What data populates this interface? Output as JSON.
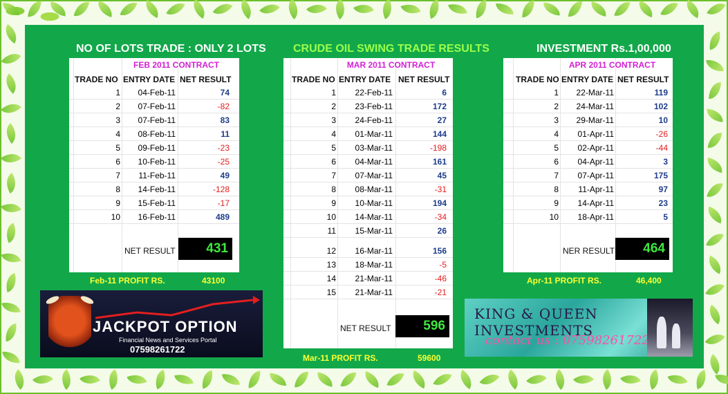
{
  "header": {
    "left": "NO OF LOTS TRADE : ONLY 2 LOTS",
    "center": "CRUDE OIL SWING TRADE RESULTS",
    "right": "INVESTMENT  Rs.1,00,000"
  },
  "columns": {
    "trade_no": "TRADE NO",
    "entry_date": "ENTRY DATE",
    "net_result": "NET RESULT"
  },
  "feb": {
    "contract": "FEB 2011 CONTRACT",
    "rows": [
      {
        "no": "1",
        "date": "04-Feb-11",
        "result": "74"
      },
      {
        "no": "2",
        "date": "07-Feb-11",
        "result": "-82"
      },
      {
        "no": "3",
        "date": "07-Feb-11",
        "result": "83"
      },
      {
        "no": "4",
        "date": "08-Feb-11",
        "result": "11"
      },
      {
        "no": "5",
        "date": "09-Feb-11",
        "result": "-23"
      },
      {
        "no": "6",
        "date": "10-Feb-11",
        "result": "-25"
      },
      {
        "no": "7",
        "date": "11-Feb-11",
        "result": "49"
      },
      {
        "no": "8",
        "date": "14-Feb-11",
        "result": "-128"
      },
      {
        "no": "9",
        "date": "15-Feb-11",
        "result": "-17"
      },
      {
        "no": "10",
        "date": "16-Feb-11",
        "result": "489"
      }
    ],
    "net_label": "NET RESULT",
    "net_value": "431",
    "profit_label": "Feb-11 PROFIT RS.",
    "profit_value": "43100"
  },
  "mar": {
    "contract": "MAR 2011 CONTRACT",
    "rows": [
      {
        "no": "1",
        "date": "22-Feb-11",
        "result": "6"
      },
      {
        "no": "2",
        "date": "23-Feb-11",
        "result": "172"
      },
      {
        "no": "3",
        "date": "24-Feb-11",
        "result": "27"
      },
      {
        "no": "4",
        "date": "01-Mar-11",
        "result": "144"
      },
      {
        "no": "5",
        "date": "03-Mar-11",
        "result": "-198"
      },
      {
        "no": "6",
        "date": "04-Mar-11",
        "result": "161"
      },
      {
        "no": "7",
        "date": "07-Mar-11",
        "result": "45"
      },
      {
        "no": "8",
        "date": "08-Mar-11",
        "result": "-31"
      },
      {
        "no": "9",
        "date": "10-Mar-11",
        "result": "194"
      },
      {
        "no": "10",
        "date": "14-Mar-11",
        "result": "-34"
      },
      {
        "no": "11",
        "date": "15-Mar-11",
        "result": "26"
      },
      {
        "no": "12",
        "date": "16-Mar-11",
        "result": "156"
      },
      {
        "no": "13",
        "date": "18-Mar-11",
        "result": "-5"
      },
      {
        "no": "14",
        "date": "21-Mar-11",
        "result": "-46"
      },
      {
        "no": "15",
        "date": "21-Mar-11",
        "result": "-21"
      }
    ],
    "net_label": "NET RESULT",
    "net_value": "596",
    "profit_label": "Mar-11 PROFIT RS.",
    "profit_value": "59600"
  },
  "apr": {
    "contract": "APR 2011 CONTRACT",
    "rows": [
      {
        "no": "1",
        "date": "22-Mar-11",
        "result": "119"
      },
      {
        "no": "2",
        "date": "24-Mar-11",
        "result": "102"
      },
      {
        "no": "3",
        "date": "29-Mar-11",
        "result": "10"
      },
      {
        "no": "4",
        "date": "01-Apr-11",
        "result": "-26"
      },
      {
        "no": "5",
        "date": "02-Apr-11",
        "result": "-44"
      },
      {
        "no": "6",
        "date": "04-Apr-11",
        "result": "3"
      },
      {
        "no": "7",
        "date": "07-Apr-11",
        "result": "175"
      },
      {
        "no": "8",
        "date": "11-Apr-11",
        "result": "97"
      },
      {
        "no": "9",
        "date": "14-Apr-11",
        "result": "23"
      },
      {
        "no": "10",
        "date": "18-Apr-11",
        "result": "5"
      }
    ],
    "net_label": "NER RESULT",
    "net_value": "464",
    "profit_label": "Apr-11 PROFIT RS.",
    "profit_value": "46,400"
  },
  "ad_jackpot": {
    "title": "JACKPOT OPTION",
    "subtitle": "Financial News and Services Portal",
    "phone": "07598261722"
  },
  "ad_kq": {
    "title": "KING & QUEEN INVESTMENTS",
    "contact": "contact us : 07598261722"
  },
  "colors": {
    "positive": "#1c3c8a",
    "negative": "#e21b1b",
    "net_value": "#3ee93e",
    "profit": "#ffff33"
  }
}
